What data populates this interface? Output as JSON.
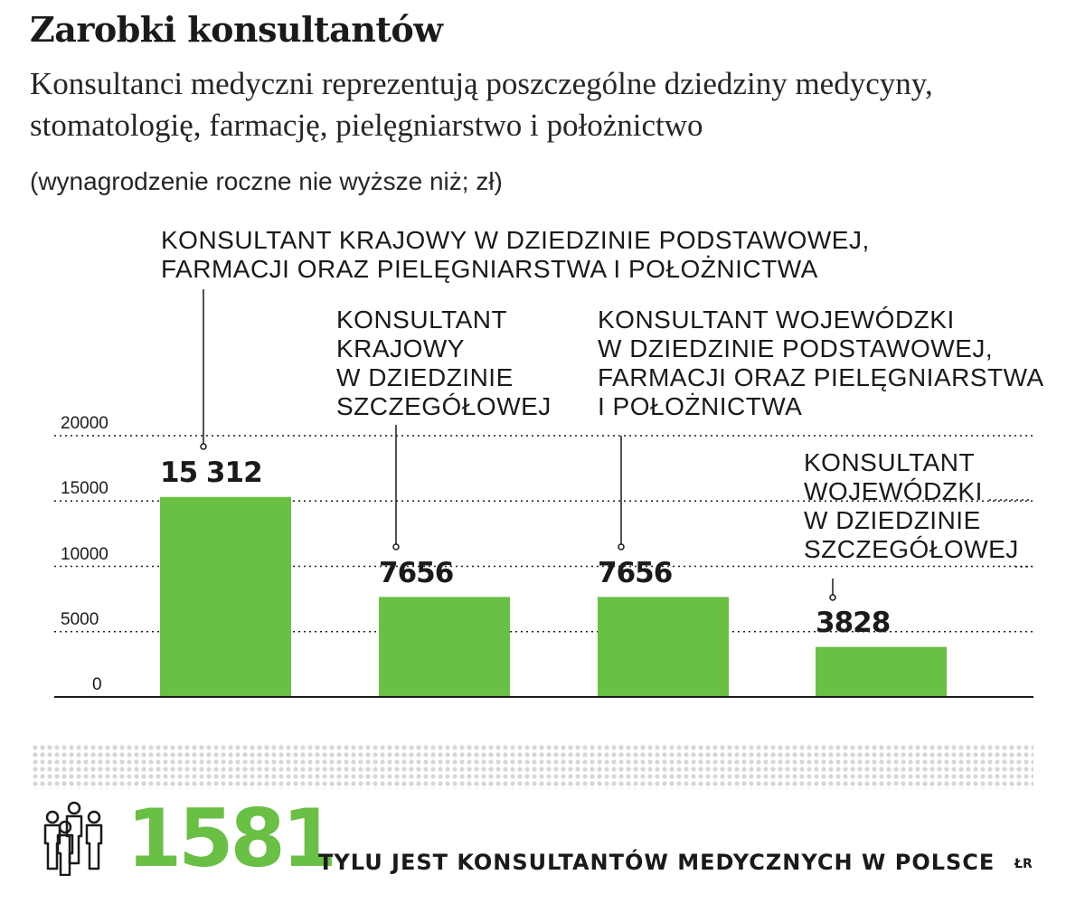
{
  "title": "Zarobki konsultantów",
  "subtitle": "Konsultanci medyczni reprezentują poszczególne dziedziny medycyny, stomatologię, farmację, pielęgniarstwo i położnictwo",
  "unit_note": "(wynagrodzenie roczne nie wyższe niż; zł)",
  "chart_data": {
    "type": "bar",
    "categories": [
      "KONSULTANT KRAJOWY W DZIEDZINIE PODSTAWOWEJ,\nFARMACJI ORAZ PIELĘGNIARSTWA I POŁOŻNICTWA",
      "KONSULTANT\nKRAJOWY\nW DZIEDZINIE\nSZCZEGÓŁOWEJ",
      "KONSULTANT WOJEWÓDZKI\nW DZIEDZINIE PODSTAWOWEJ,\nFARMACJI ORAZ PIELĘGNIARSTWA\nI POŁOŻNICTWA",
      "KONSULTANT\nWOJEWÓDZKI\nW DZIEDZINIE\nSZCZEGÓŁOWEJ"
    ],
    "values": [
      15312,
      7656,
      7656,
      3828
    ],
    "value_labels": [
      "15 312",
      "7656",
      "7656",
      "3828"
    ],
    "ylim": [
      0,
      20000
    ],
    "yticks": [
      0,
      5000,
      10000,
      15000,
      20000
    ],
    "ytick_labels": [
      "0",
      "5000",
      "10000",
      "15000",
      "20000"
    ],
    "grid": true,
    "bar_color": "#6abf45",
    "xlabel": "",
    "ylabel": ""
  },
  "summary": {
    "count": "1581",
    "caption": "TYLU JEST KONSULTANTÓW MEDYCZNYCH W POLSCE",
    "credit": "ŁR",
    "accent_color": "#6abf45",
    "icon": "people-group-icon"
  }
}
